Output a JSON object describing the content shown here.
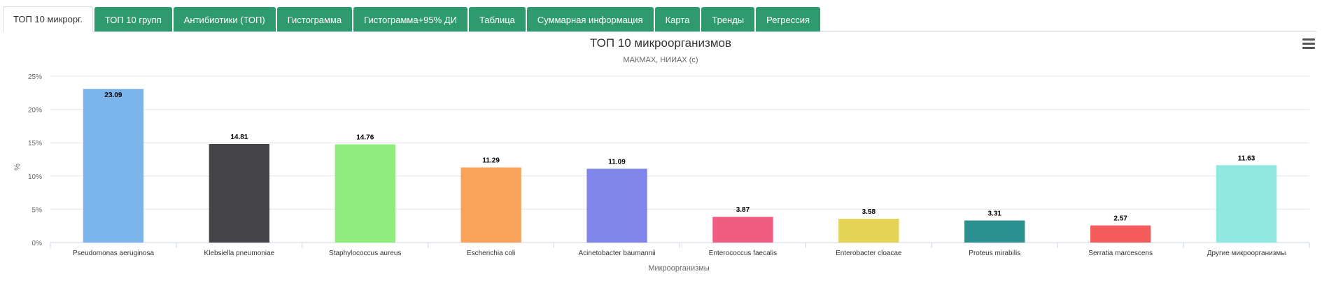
{
  "tabs": [
    {
      "label": "ТОП 10 микрорг.",
      "active": true
    },
    {
      "label": "ТОП 10 групп",
      "active": false
    },
    {
      "label": "Антибиотики (ТОП)",
      "active": false
    },
    {
      "label": "Гистограмма",
      "active": false
    },
    {
      "label": "Гистограмма+95% ДИ",
      "active": false
    },
    {
      "label": "Таблица",
      "active": false
    },
    {
      "label": "Суммарная информация",
      "active": false
    },
    {
      "label": "Карта",
      "active": false
    },
    {
      "label": "Тренды",
      "active": false
    },
    {
      "label": "Регрессия",
      "active": false
    }
  ],
  "colors": {
    "tab_bg": "#2f9a6e",
    "tab_text": "#ffffff",
    "grid": "#e6e6e6"
  },
  "chart_data": {
    "type": "bar",
    "title": "ТОП 10 микроорганизмов",
    "subtitle": "МАКМАХ, НИИАХ (c)",
    "xlabel": "Микроорганизмы",
    "ylabel": "%",
    "ylim": [
      0,
      25
    ],
    "yticks": [
      0,
      5,
      10,
      15,
      20,
      25
    ],
    "ytick_labels": [
      "0%",
      "5%",
      "10%",
      "15%",
      "20%",
      "25%"
    ],
    "grid": true,
    "categories": [
      "Pseudomonas aeruginosa",
      "Klebsiella pneumoniae",
      "Staphylococcus aureus",
      "Escherichia coli",
      "Acinetobacter baumannii",
      "Enterococcus faecalis",
      "Enterobacter cloacae",
      "Proteus mirabilis",
      "Serratia marcescens",
      "Другие микроорганизмы"
    ],
    "values": [
      23.09,
      14.81,
      14.76,
      11.29,
      11.09,
      3.87,
      3.58,
      3.31,
      2.57,
      11.63
    ],
    "value_labels": [
      "23.09",
      "14.81",
      "14.76",
      "11.29",
      "11.09",
      "3.87",
      "3.58",
      "3.31",
      "2.57",
      "11.63"
    ],
    "bar_colors": [
      "#7cb5ec",
      "#434348",
      "#90ed7d",
      "#f7a35c",
      "#8085e9",
      "#f15c80",
      "#e4d354",
      "#2b908f",
      "#f45b5b",
      "#91e8e1"
    ]
  }
}
